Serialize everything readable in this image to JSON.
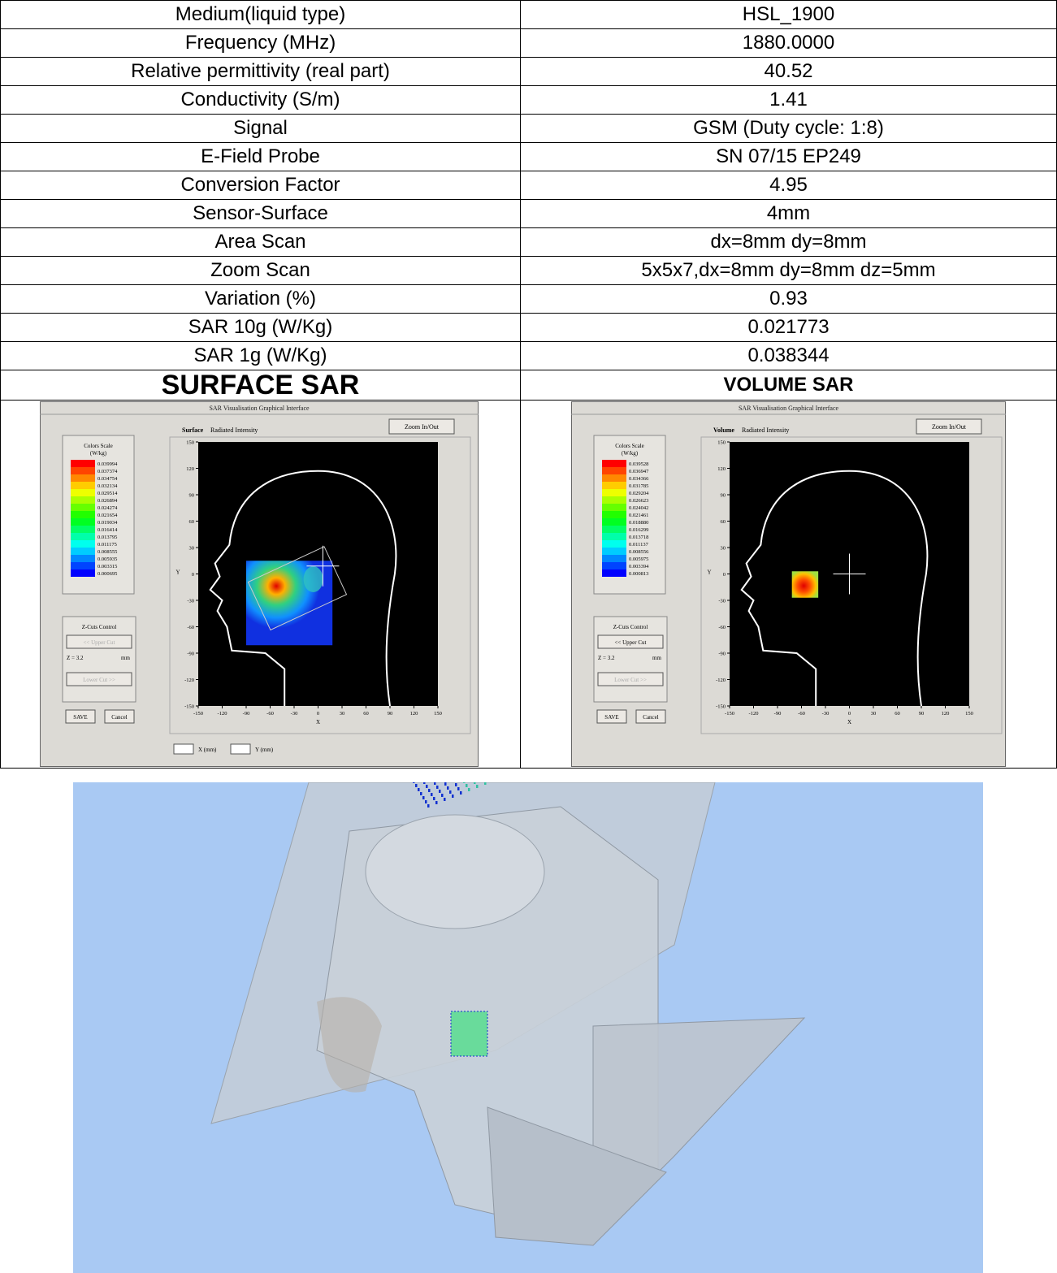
{
  "table": {
    "rows": [
      [
        "Medium(liquid type)",
        "HSL_1900"
      ],
      [
        "Frequency (MHz)",
        "1880.0000"
      ],
      [
        "Relative permittivity (real part)",
        "40.52"
      ],
      [
        "Conductivity (S/m)",
        "1.41"
      ],
      [
        "Signal",
        "GSM (Duty cycle: 1:8)"
      ],
      [
        "E-Field Probe",
        "SN 07/15 EP249"
      ],
      [
        "Conversion Factor",
        "4.95"
      ],
      [
        "Sensor-Surface",
        "4mm"
      ],
      [
        "Area Scan",
        "dx=8mm dy=8mm"
      ],
      [
        "Zoom Scan",
        "5x5x7,dx=8mm dy=8mm dz=5mm"
      ],
      [
        "Variation (%)",
        "0.93"
      ],
      [
        "SAR 10g (W/Kg)",
        "0.021773"
      ],
      [
        "SAR 1g (W/Kg)",
        "0.038344"
      ]
    ],
    "headers": [
      "SURFACE SAR",
      "VOLUME SAR"
    ]
  },
  "panels": [
    {
      "window_title": "SAR Visualisation Graphical Interface",
      "plot_mode": "Surface",
      "plot_subtitle": "Radiated Intensity",
      "zoom_button": "Zoom In/Out",
      "scale_title": "Colors Scale",
      "scale_unit": "(W/kg)",
      "scale_values": [
        "0.039994",
        "0.037374",
        "0.034754",
        "0.032134",
        "0.029514",
        "0.026894",
        "0.024274",
        "0.021654",
        "0.019034",
        "0.016414",
        "0.013795",
        "0.011175",
        "0.008555",
        "0.005935",
        "0.003315",
        "0.000695"
      ],
      "zcuts_title": "Z-Cuts Control",
      "upper_cut": "<< Upper Cut",
      "z_label": "Z = 3.2",
      "z_unit": "mm",
      "lower_cut": "Lower Cut >>",
      "save": "SAVE",
      "cancel": "Cancel",
      "y_ticks": [
        "150",
        "120",
        "90",
        "60",
        "30",
        "0",
        "-30",
        "-60",
        "-90",
        "-120",
        "-150"
      ],
      "x_ticks": [
        "-150",
        "-120",
        "-90",
        "-60",
        "-30",
        "0",
        "30",
        "60",
        "90",
        "120",
        "150"
      ],
      "x_label": "X",
      "y_label": "Y",
      "inputs": [
        "X (mm)",
        "Y (mm)"
      ]
    },
    {
      "window_title": "SAR Visualisation Graphical Interface",
      "plot_mode": "Volume",
      "plot_subtitle": "Radiated Intensity",
      "zoom_button": "Zoom In/Out",
      "scale_title": "Colors Scale",
      "scale_unit": "(W/kg)",
      "scale_values": [
        "0.039528",
        "0.036947",
        "0.034366",
        "0.031785",
        "0.029204",
        "0.026623",
        "0.024042",
        "0.021461",
        "0.018880",
        "0.016299",
        "0.013718",
        "0.011137",
        "0.008556",
        "0.005975",
        "0.003394",
        "0.000813"
      ],
      "zcuts_title": "Z-Cuts Control",
      "upper_cut": "<< Upper Cut",
      "z_label": "Z = 3.2",
      "z_unit": "mm",
      "lower_cut": "Lower Cut >>",
      "save": "SAVE",
      "cancel": "Cancel",
      "y_ticks": [
        "150",
        "120",
        "90",
        "60",
        "30",
        "0",
        "-30",
        "-60",
        "-90",
        "-120",
        "-150"
      ],
      "x_ticks": [
        "-150",
        "-120",
        "-90",
        "-60",
        "-30",
        "0",
        "30",
        "60",
        "90",
        "120",
        "150"
      ],
      "x_label": "X",
      "y_label": "Y"
    }
  ]
}
